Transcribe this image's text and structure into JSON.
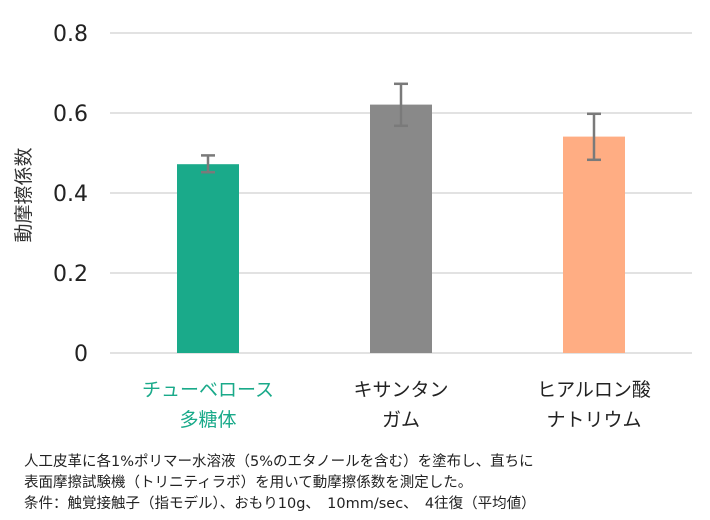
{
  "chart_data": {
    "type": "bar",
    "categories": [
      [
        "チューベロース",
        "多糖体"
      ],
      [
        "キサンタン",
        "ガム"
      ],
      [
        "ヒアルロン酸",
        "ナトリウム"
      ]
    ],
    "values": [
      0.472,
      0.621,
      0.541
    ],
    "error_low": [
      0.452,
      0.568,
      0.483
    ],
    "error_high": [
      0.494,
      0.673,
      0.598
    ],
    "bar_colors": [
      "#1aaa8a",
      "#898989",
      "#ffad83"
    ],
    "label_colors": [
      "#1aaa8a",
      "#222222",
      "#222222"
    ],
    "ylabel": "動摩擦係数",
    "ylim": [
      0,
      0.8
    ],
    "yticks": [
      "0",
      "0.2",
      "0.4",
      "0.6",
      "0.8"
    ],
    "ytick_values": [
      0,
      0.2,
      0.4,
      0.6,
      0.8
    ],
    "grid": true,
    "gridline_color": "#d9d9d9",
    "errorbar_color": "#7a7a7a"
  },
  "footnote": {
    "line1": "人工皮革に各1%ポリマー水溶液（5%のエタノールを含む）を塗布し、直ちに",
    "line2": "表面摩擦試験機（トリニティラボ）を用いて動摩擦係数を測定した。",
    "line3": "条件：触覚接触子（指モデル）、おもり10g、　10mm/sec、　4往復（平均値）"
  }
}
